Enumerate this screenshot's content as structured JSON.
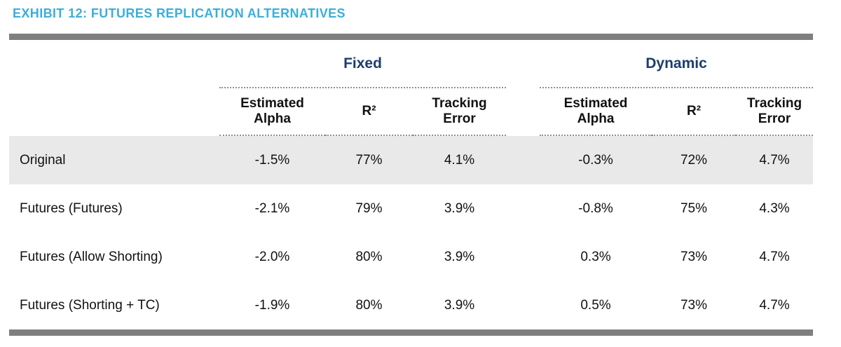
{
  "exhibit": {
    "title": "EXHIBIT 12: FUTURES REPLICATION ALTERNATIVES"
  },
  "table": {
    "group_headers": [
      {
        "label": "Fixed"
      },
      {
        "label": "Dynamic"
      }
    ],
    "sub_headers": [
      "Estimated Alpha",
      "R²",
      "Tracking Error",
      "Estimated Alpha",
      "R²",
      "Tracking Error"
    ],
    "rows": [
      {
        "label": "Original",
        "values": [
          "-1.5%",
          "77%",
          "4.1%",
          "-0.3%",
          "72%",
          "4.7%"
        ]
      },
      {
        "label": "Futures (Futures)",
        "values": [
          "-2.1%",
          "79%",
          "3.9%",
          "-0.8%",
          "75%",
          "4.3%"
        ]
      },
      {
        "label": "Futures (Allow Shorting)",
        "values": [
          "-2.0%",
          "80%",
          "3.9%",
          "0.3%",
          "73%",
          "4.7%"
        ]
      },
      {
        "label": "Futures (Shorting + TC)",
        "values": [
          "-1.9%",
          "80%",
          "3.9%",
          "0.5%",
          "73%",
          "4.7%"
        ]
      }
    ]
  },
  "chart_data": {
    "type": "table",
    "title": "EXHIBIT 12: FUTURES REPLICATION ALTERNATIVES",
    "column_groups": [
      "Fixed",
      "Dynamic"
    ],
    "columns": [
      "Estimated Alpha (Fixed)",
      "R² (Fixed)",
      "Tracking Error (Fixed)",
      "Estimated Alpha (Dynamic)",
      "R² (Dynamic)",
      "Tracking Error (Dynamic)"
    ],
    "rows": [
      [
        "Original",
        "-1.5%",
        "77%",
        "4.1%",
        "-0.3%",
        "72%",
        "4.7%"
      ],
      [
        "Futures (Futures)",
        "-2.1%",
        "79%",
        "3.9%",
        "-0.8%",
        "75%",
        "4.3%"
      ],
      [
        "Futures (Allow Shorting)",
        "-2.0%",
        "80%",
        "3.9%",
        "0.3%",
        "73%",
        "4.7%"
      ],
      [
        "Futures (Shorting + TC)",
        "-1.9%",
        "80%",
        "3.9%",
        "0.5%",
        "73%",
        "4.7%"
      ]
    ]
  },
  "colors": {
    "title_accent": "#3BAEDC",
    "group_header_navy": "#1B3E6F",
    "divider_gray": "#7f7f7f",
    "shaded_row": "#E9E9E9"
  }
}
